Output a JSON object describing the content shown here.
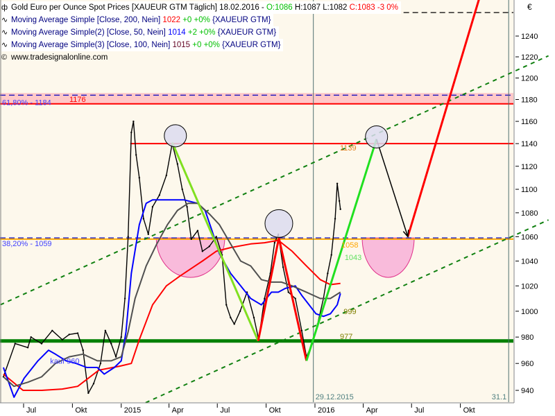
{
  "window": {
    "title": "Gold Euro per Ounce Spot Prices [XAUEUR GTM  Täglich] 18.02.2016 -",
    "ohlc": {
      "open": "O:1086",
      "high": "H:1087",
      "low": "L:1082",
      "close": "C:1083 -3 0%"
    },
    "copyright": "www.tradesignalonline.com"
  },
  "indicators": [
    {
      "label": "Moving Average Simple [Close, 200, Nein]",
      "value": "1022",
      "change": "+0 +0%",
      "symbol": "{XAUEUR GTM}",
      "color": "#ff0000"
    },
    {
      "label": "Moving Average Simple(2) [Close, 50, Nein]",
      "value": "1014",
      "change": "+2 +0%",
      "symbol": "{XAUEUR GTM}",
      "color": "#0000ff"
    },
    {
      "label": "Moving Average Simple(3) [Close, 100, Nein]",
      "value": "1015",
      "change": "+0 +0%",
      "symbol": "{XAUEUR GTM}",
      "color": "#404040"
    }
  ],
  "icons": {
    "chart": "candlestick-icon",
    "indicator": "wave-icon",
    "copyright": "copyright-icon"
  },
  "colors": {
    "background": "#fdf8ec",
    "ma200": "#ff0000",
    "ma50": "#0000ff",
    "ma100": "#505050",
    "price": "#000000",
    "support": "#008000",
    "resistance": "#ff0000",
    "fib": "#ffa500",
    "zone": "#ffc8c8",
    "pink_bowl": "#f8b0d8",
    "circle": "#dcdcf0"
  },
  "chart_data": {
    "type": "line",
    "y_scale": "log",
    "ylim": [
      930,
      1275
    ],
    "xlim": [
      "2014-05-18",
      "2017-01-05"
    ],
    "ylabel": "€",
    "y_ticks": [
      940,
      960,
      980,
      1000,
      1020,
      1040,
      1060,
      1080,
      1100,
      1120,
      1140,
      1160,
      1180,
      1200,
      1220,
      1240
    ],
    "x_ticks": [
      {
        "date": "2014-07-01",
        "label": "Jul"
      },
      {
        "date": "2014-10-01",
        "label": "Okt"
      },
      {
        "date": "2015-01-01",
        "label": "2015"
      },
      {
        "date": "2015-04-01",
        "label": "Apr"
      },
      {
        "date": "2015-07-01",
        "label": "Jul"
      },
      {
        "date": "2015-10-01",
        "label": "Okt"
      },
      {
        "date": "2016-01-01",
        "label": "2016"
      },
      {
        "date": "2016-04-01",
        "label": "Apr"
      },
      {
        "date": "2016-07-01",
        "label": "Jul"
      },
      {
        "date": "2016-10-01",
        "label": "Okt"
      }
    ],
    "grid": false,
    "series": [
      {
        "name": "Gold Euro per Ounce Spot Prices",
        "color": "#000000",
        "points": [
          [
            "2014-05-24",
            950
          ],
          [
            "2014-06-15",
            975
          ],
          [
            "2014-07-09",
            972
          ],
          [
            "2014-07-15",
            980
          ],
          [
            "2014-08-04",
            975
          ],
          [
            "2014-08-24",
            985
          ],
          [
            "2014-09-12",
            978
          ],
          [
            "2014-09-25",
            982
          ],
          [
            "2014-10-11",
            983
          ],
          [
            "2014-10-21",
            970
          ],
          [
            "2014-10-31",
            938
          ],
          [
            "2014-11-10",
            945
          ],
          [
            "2014-11-23",
            960
          ],
          [
            "2014-12-02",
            985
          ],
          [
            "2014-12-13",
            975
          ],
          [
            "2014-12-22",
            965
          ],
          [
            "2015-01-01",
            980
          ],
          [
            "2015-01-08",
            1010
          ],
          [
            "2015-01-14",
            1060
          ],
          [
            "2015-01-20",
            1150
          ],
          [
            "2015-01-24",
            1160
          ],
          [
            "2015-01-29",
            1130
          ],
          [
            "2015-02-04",
            1110
          ],
          [
            "2015-02-12",
            1075
          ],
          [
            "2015-02-21",
            1062
          ],
          [
            "2015-03-01",
            1085
          ],
          [
            "2015-03-14",
            1095
          ],
          [
            "2015-03-27",
            1112
          ],
          [
            "2015-04-07",
            1140
          ],
          [
            "2015-04-17",
            1122
          ],
          [
            "2015-04-26",
            1100
          ],
          [
            "2015-05-05",
            1085
          ],
          [
            "2015-05-13",
            1058
          ],
          [
            "2015-05-25",
            1065
          ],
          [
            "2015-06-03",
            1048
          ],
          [
            "2015-06-16",
            1052
          ],
          [
            "2015-06-29",
            1060
          ],
          [
            "2015-07-10",
            1045
          ],
          [
            "2015-07-18",
            1005
          ],
          [
            "2015-07-26",
            995
          ],
          [
            "2015-08-02",
            990
          ],
          [
            "2015-08-13",
            1000
          ],
          [
            "2015-08-26",
            1015
          ],
          [
            "2015-09-08",
            995
          ],
          [
            "2015-09-17",
            978
          ],
          [
            "2015-09-28",
            1010
          ],
          [
            "2015-10-09",
            1030
          ],
          [
            "2015-10-17",
            1055
          ],
          [
            "2015-10-24",
            1062
          ],
          [
            "2015-11-02",
            1035
          ],
          [
            "2015-11-12",
            1015
          ],
          [
            "2015-11-25",
            1010
          ],
          [
            "2015-12-07",
            985
          ],
          [
            "2015-12-16",
            965
          ],
          [
            "2015-12-27",
            975
          ],
          [
            "2016-01-06",
            990
          ],
          [
            "2016-01-17",
            1010
          ],
          [
            "2016-01-25",
            1030
          ],
          [
            "2016-02-01",
            1045
          ],
          [
            "2016-02-08",
            1075
          ],
          [
            "2016-02-12",
            1105
          ],
          [
            "2016-02-16",
            1090
          ],
          [
            "2016-02-18",
            1083
          ]
        ]
      },
      {
        "name": "Moving Average Simple [Close, 200, Nein]",
        "color": "#ff0000",
        "points": [
          [
            "2014-05-24",
            952
          ],
          [
            "2014-06-30",
            940
          ],
          [
            "2014-08-04",
            940
          ],
          [
            "2014-09-12",
            941
          ],
          [
            "2014-10-11",
            943
          ],
          [
            "2014-11-20",
            955
          ],
          [
            "2014-12-30",
            958
          ],
          [
            "2015-01-20",
            960
          ],
          [
            "2015-02-04",
            978
          ],
          [
            "2015-03-01",
            1005
          ],
          [
            "2015-03-27",
            1020
          ],
          [
            "2015-04-22",
            1028
          ],
          [
            "2015-06-03",
            1040
          ],
          [
            "2015-06-29",
            1048
          ],
          [
            "2015-07-26",
            1051
          ],
          [
            "2015-09-02",
            1054
          ],
          [
            "2015-09-28",
            1055
          ],
          [
            "2015-10-24",
            1057
          ],
          [
            "2015-11-19",
            1048
          ],
          [
            "2015-12-16",
            1036
          ],
          [
            "2016-01-11",
            1025
          ],
          [
            "2016-01-30",
            1021
          ],
          [
            "2016-02-18",
            1022
          ]
        ]
      },
      {
        "name": "Moving Average Simple(2) [Close, 50, Nein]",
        "color": "#0000ff",
        "points": [
          [
            "2014-05-24",
            957
          ],
          [
            "2014-06-13",
            935
          ],
          [
            "2014-07-02",
            949
          ],
          [
            "2014-07-28",
            962
          ],
          [
            "2014-08-17",
            970
          ],
          [
            "2014-08-30",
            967
          ],
          [
            "2014-09-19",
            962
          ],
          [
            "2014-10-08",
            960
          ],
          [
            "2014-10-28",
            957
          ],
          [
            "2014-11-17",
            957
          ],
          [
            "2014-11-30",
            952
          ],
          [
            "2014-12-19",
            957
          ],
          [
            "2015-01-01",
            962
          ],
          [
            "2015-01-10",
            984
          ],
          [
            "2015-01-20",
            1030
          ],
          [
            "2015-02-04",
            1070
          ],
          [
            "2015-02-17",
            1088
          ],
          [
            "2015-03-01",
            1091
          ],
          [
            "2015-03-20",
            1091
          ],
          [
            "2015-04-09",
            1091
          ],
          [
            "2015-04-29",
            1091
          ],
          [
            "2015-05-25",
            1088
          ],
          [
            "2015-06-08",
            1082
          ],
          [
            "2015-06-21",
            1065
          ],
          [
            "2015-07-05",
            1046
          ],
          [
            "2015-07-26",
            1030
          ],
          [
            "2015-08-14",
            1020
          ],
          [
            "2015-09-02",
            1010
          ],
          [
            "2015-09-22",
            1005
          ],
          [
            "2015-10-11",
            1015
          ],
          [
            "2015-10-24",
            1015
          ],
          [
            "2015-11-06",
            1018
          ],
          [
            "2015-11-25",
            1020
          ],
          [
            "2015-12-08",
            1012
          ],
          [
            "2015-12-21",
            1005
          ],
          [
            "2016-01-03",
            998
          ],
          [
            "2016-01-17",
            996
          ],
          [
            "2016-01-30",
            998
          ],
          [
            "2016-02-12",
            1005
          ],
          [
            "2016-02-18",
            1014
          ]
        ]
      },
      {
        "name": "Moving Average Simple(3) [Close, 100, Nein]",
        "color": "#505050",
        "points": [
          [
            "2014-05-24",
            950
          ],
          [
            "2014-06-13",
            943
          ],
          [
            "2014-07-09",
            946
          ],
          [
            "2014-08-04",
            950
          ],
          [
            "2014-08-30",
            960
          ],
          [
            "2014-09-25",
            965
          ],
          [
            "2014-10-21",
            967
          ],
          [
            "2014-11-17",
            962
          ],
          [
            "2014-12-13",
            962
          ],
          [
            "2015-01-01",
            965
          ],
          [
            "2015-01-14",
            984
          ],
          [
            "2015-01-27",
            1010
          ],
          [
            "2015-02-17",
            1036
          ],
          [
            "2015-03-09",
            1054
          ],
          [
            "2015-03-29",
            1070
          ],
          [
            "2015-04-17",
            1082
          ],
          [
            "2015-05-07",
            1088
          ],
          [
            "2015-05-25",
            1088
          ],
          [
            "2015-06-16",
            1079
          ],
          [
            "2015-07-05",
            1070
          ],
          [
            "2015-07-26",
            1054
          ],
          [
            "2015-08-14",
            1040
          ],
          [
            "2015-09-02",
            1036
          ],
          [
            "2015-09-22",
            1025
          ],
          [
            "2015-10-11",
            1023
          ],
          [
            "2015-10-30",
            1023
          ],
          [
            "2015-11-19",
            1020
          ],
          [
            "2015-12-16",
            1015
          ],
          [
            "2016-01-11",
            1010
          ],
          [
            "2016-01-30",
            1010
          ],
          [
            "2016-02-18",
            1015
          ]
        ]
      }
    ],
    "annotations": {
      "zone": {
        "from": 1176,
        "to": 1186,
        "color": "#ffc8c8"
      },
      "hlines": [
        {
          "name": "fib-61-8-line",
          "value": 1184,
          "color": "#0000c0",
          "dash": true,
          "label": "61,80% - 1184",
          "label_color": "#4040ff"
        },
        {
          "name": "resistance-1176-line",
          "value": 1176,
          "color": "#ff0000",
          "dash": false,
          "label": "1176",
          "label_color": "#ff0000"
        },
        {
          "name": "resistance-1140-line",
          "value": 1140,
          "color": "#ff0000",
          "dash": false,
          "start": "2015-01-18",
          "label": "1139",
          "label_color": "#e08020"
        },
        {
          "name": "fib-38-2-line",
          "value": 1059,
          "color": "#0000c0",
          "dash": true,
          "label": "38,20% - 1059",
          "label_color": "#4040ff"
        },
        {
          "name": "orange-1058-line",
          "value": 1058,
          "color": "#ffa500",
          "dash": false,
          "label": "1058",
          "label_color": "#ffa500"
        },
        {
          "name": "support-977-line",
          "value": 977,
          "color": "#008000",
          "dash": false,
          "thick": true,
          "label": "977",
          "label_color": "#808000"
        },
        {
          "name": "top-dashed-line",
          "value": 1263,
          "color": "#000000",
          "dash": true,
          "start": "2015-12-29"
        }
      ],
      "price_labels": [
        {
          "text": "1043",
          "value": 1043,
          "date": "2016-02-26",
          "color": "#60e060"
        },
        {
          "text": "999",
          "value": 1000,
          "date": "2016-02-24",
          "color": "#808000"
        },
        {
          "text": "kauf 960",
          "value": 962,
          "date": "2014-08-20",
          "color": "#4040ff"
        }
      ],
      "channel": [
        {
          "from": [
            "2014-05-18",
            1005
          ],
          "to": [
            "2017-03-16",
            1221
          ]
        },
        {
          "from": [
            "2015-02-16",
            931
          ],
          "to": [
            "2017-03-16",
            1074
          ]
        }
      ],
      "segments": [
        {
          "name": "down-trend-line",
          "color": "#80e020",
          "from": [
            "2015-04-07",
            1141
          ],
          "to": [
            "2015-09-16",
            977
          ]
        },
        {
          "name": "zigzag-up",
          "color": "#ff0000",
          "from": [
            "2015-09-16",
            977
          ],
          "to": [
            "2015-10-25",
            1059
          ]
        },
        {
          "name": "zigzag-down",
          "color": "#ff0000",
          "from": [
            "2015-10-25",
            1059
          ],
          "to": [
            "2015-12-16",
            962
          ]
        },
        {
          "name": "projection-up",
          "color": "#20e020",
          "from": [
            "2015-12-16",
            962
          ],
          "to": [
            "2016-04-26",
            1144
          ]
        },
        {
          "name": "projection-rally",
          "color": "#ff0000",
          "from": [
            "2016-06-24",
            1060
          ],
          "to": [
            "2016-11-05",
            1276
          ]
        }
      ],
      "arrow": {
        "from": [
          "2016-04-26",
          1144
        ],
        "to": [
          "2016-06-24",
          1060
        ],
        "color": "#000000"
      },
      "circles": [
        {
          "date": "2015-04-13",
          "value": 1147
        },
        {
          "date": "2015-10-25",
          "value": 1071
        },
        {
          "date": "2016-04-26",
          "value": 1146
        }
      ],
      "bowls": [
        {
          "from": "2015-03-08",
          "to": "2015-07-15",
          "value": 1059
        },
        {
          "from": "2016-03-30",
          "to": "2016-07-06",
          "value": 1059
        }
      ],
      "vlines": [
        {
          "date": "2015-12-29",
          "label": "29.12.2015"
        },
        {
          "date": "2016-12-31",
          "label": "31.1"
        }
      ]
    }
  }
}
